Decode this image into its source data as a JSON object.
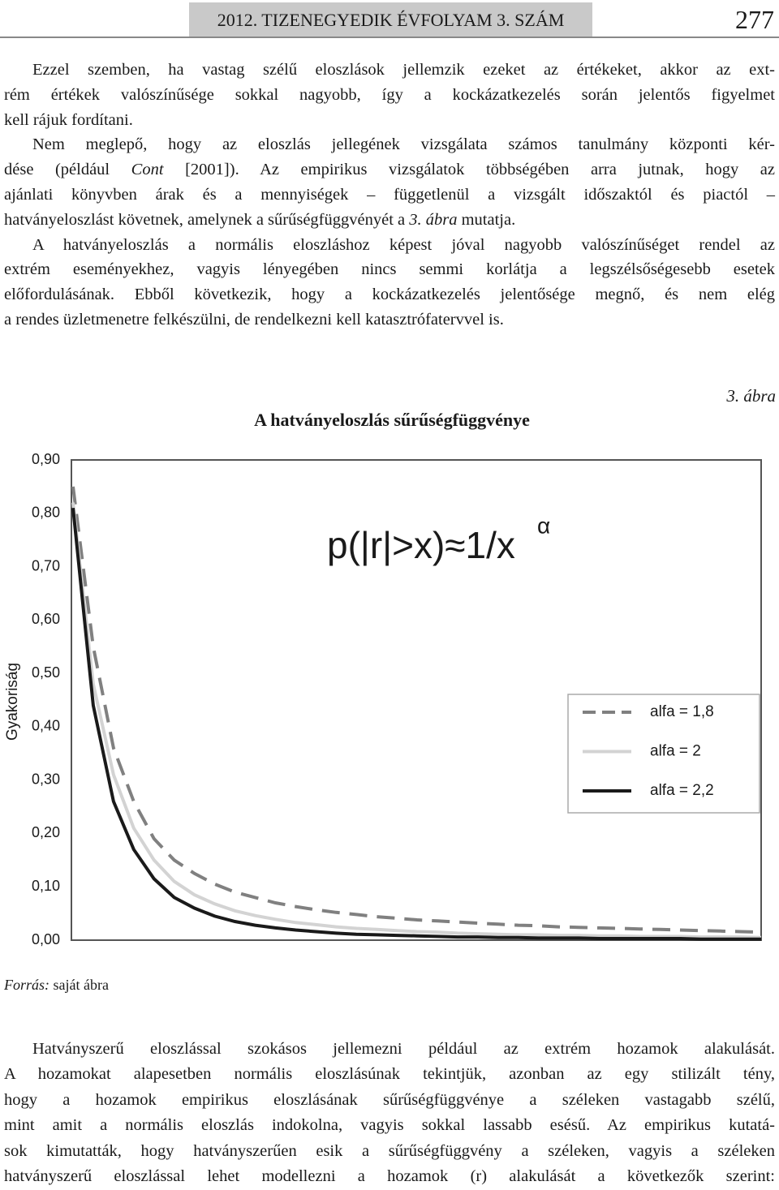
{
  "header": {
    "left": "2012. TIZENEGYEDIK ÉVFOLYAM 3. SZÁM",
    "page": "277"
  },
  "text_before": [
    [
      [
        "Ezzel szemben, ha vastag szélű eloszlások jellemzik ezeket az értékeket, akkor az ext-"
      ],
      [
        "rém értékek valószínűsége sokkal nagyobb, így a kockázatkezelés során jelentős figyelmet"
      ],
      [
        "kell rájuk fordítani."
      ]
    ],
    [
      [
        "Nem meglepő, hogy az eloszlás jellegének vizsgálata számos tanulmány központi kér-"
      ],
      [
        "dése (például ",
        {
          "text": "Cont",
          "italic": true
        },
        " [2001]). Az empirikus vizsgálatok többségében arra jutnak, hogy az"
      ],
      [
        "ajánlati könyvben árak és a mennyiségek – függetlenül a vizsgált időszaktól és piactól –"
      ],
      [
        "hatványeloszlást követnek, amelynek a sűrűségfüggvényét a ",
        {
          "text": "3. ábra",
          "italic": true
        },
        " mutatja."
      ]
    ],
    [
      [
        "A hatványeloszlás a normális eloszláshoz képest jóval nagyobb valószínűséget rendel az"
      ],
      [
        "extrém eseményekhez, vagyis lényegében nincs semmi korlátja a legszélsőségesebb esetek"
      ],
      [
        "előfordulásának. Ebből következik, hogy a kockázatkezelés jelentősége megnő, és nem elég"
      ],
      [
        "a rendes üzletmenetre felkészülni, de rendelkezni kell katasztrófatervvel is."
      ]
    ]
  ],
  "figure": {
    "label": "3. ábra",
    "source": [
      {
        "text": "Forrás:",
        "italic": true
      },
      " saját ábra"
    ]
  },
  "chart_data": {
    "type": "line",
    "title": "A hatványeloszlás sűrűségfüggvénye",
    "ylabel": "Gyakoriság",
    "formula": "p(|r|>x)≈1/x",
    "formula_sup": "α",
    "ylim": [
      0,
      0.9
    ],
    "yticks": [
      {
        "value": 0,
        "label": "0,00"
      },
      {
        "value": 0.1,
        "label": "0,10"
      },
      {
        "value": 0.2,
        "label": "0,20"
      },
      {
        "value": 0.3,
        "label": "0,30"
      },
      {
        "value": 0.4,
        "label": "0,40"
      },
      {
        "value": 0.5,
        "label": "0,50"
      },
      {
        "value": 0.6,
        "label": "0,60"
      },
      {
        "value": 0.7,
        "label": "0,70"
      },
      {
        "value": 0.8,
        "label": "0,80"
      },
      {
        "value": 0.9,
        "label": "0,90"
      }
    ],
    "categories": [
      null,
      null,
      null,
      null,
      null,
      null,
      null,
      null,
      null,
      null,
      null,
      null,
      null,
      null,
      null,
      null,
      null,
      null,
      null,
      null,
      null,
      null,
      null,
      null,
      null,
      null,
      null,
      null,
      null,
      null,
      null,
      null,
      null,
      null,
      null
    ],
    "series": [
      {
        "name": "alfa = 1,8",
        "color": "#808080",
        "dashed": true,
        "values": [
          0.85,
          0.55,
          0.36,
          0.26,
          0.19,
          0.15,
          0.125,
          0.105,
          0.09,
          0.08,
          0.07,
          0.063,
          0.057,
          0.052,
          0.048,
          0.044,
          0.041,
          0.038,
          0.036,
          0.034,
          0.032,
          0.03,
          0.028,
          0.027,
          0.025,
          0.024,
          0.023,
          0.022,
          0.021,
          0.02,
          0.019,
          0.018,
          0.017,
          0.016,
          0.015
        ]
      },
      {
        "name": "alfa = 2",
        "color": "#d3d3d3",
        "values": [
          0.82,
          0.48,
          0.31,
          0.21,
          0.15,
          0.11,
          0.085,
          0.068,
          0.055,
          0.046,
          0.039,
          0.033,
          0.029,
          0.025,
          0.022,
          0.02,
          0.018,
          0.016,
          0.015,
          0.013,
          0.012,
          0.011,
          0.01,
          0.01,
          0.009,
          0.009,
          0.008,
          0.008,
          0.007,
          0.007,
          0.007,
          0.006,
          0.006,
          0.006,
          0.005
        ]
      },
      {
        "name": "alfa = 2,2",
        "color": "#1a1a1a",
        "values": [
          0.81,
          0.44,
          0.26,
          0.17,
          0.115,
          0.08,
          0.06,
          0.045,
          0.035,
          0.028,
          0.023,
          0.019,
          0.016,
          0.013,
          0.011,
          0.01,
          0.009,
          0.008,
          0.007,
          0.006,
          0.006,
          0.005,
          0.005,
          0.004,
          0.004,
          0.004,
          0.003,
          0.003,
          0.003,
          0.003,
          0.003,
          0.002,
          0.002,
          0.002,
          0.002
        ]
      }
    ]
  },
  "text_after": [
    [
      [
        "Hatványszerű eloszlással szokásos jellemezni például az extrém hozamok alakulását."
      ],
      [
        "A hozamokat alapesetben normális eloszlásúnak tekintjük, azonban az egy stilizált tény,"
      ],
      [
        "hogy a hozamok empirikus eloszlásának sűrűségfüggvénye a széleken vastagabb szélű,"
      ],
      [
        "mint amit a normális eloszlás indokolna, vagyis sokkal lassabb esésű. Az empirikus kutatá-"
      ],
      [
        "sok kimutatták, hogy hatványszerűen esik a sűrűségfüggvény a széleken, vagyis a széleken"
      ],
      [
        "hatványszerű eloszlással lehet modellezni a hozamok (r) alakulását a következők szerint:"
      ]
    ]
  ]
}
